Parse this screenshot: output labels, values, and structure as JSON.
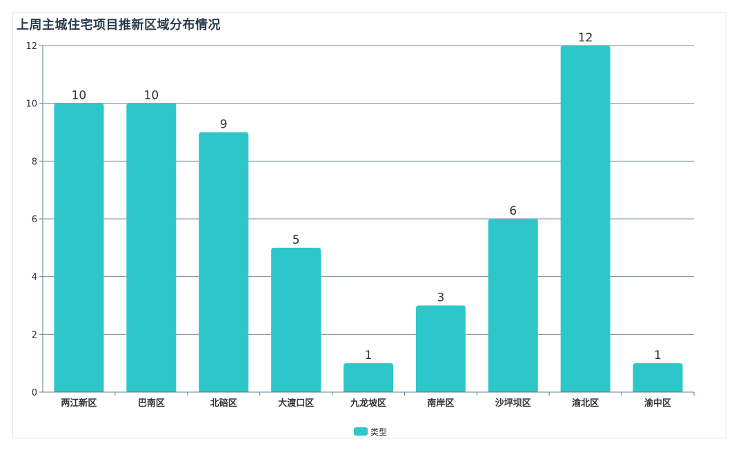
{
  "chart_data": {
    "type": "bar",
    "title": "上周主城住宅项目推新区域分布情况",
    "categories": [
      "两江新区",
      "巴南区",
      "北碚区",
      "大渡口区",
      "九龙坡区",
      "南岸区",
      "沙坪坝区",
      "渝北区",
      "渝中区"
    ],
    "series": [
      {
        "name": "类型",
        "values": [
          10,
          10,
          9,
          5,
          1,
          3,
          6,
          12,
          1
        ]
      }
    ],
    "ylim": [
      0,
      12
    ],
    "yticks": [
      0,
      2,
      4,
      6,
      8,
      10,
      12
    ],
    "grid": true,
    "legend_position": "bottom-center",
    "colors": {
      "bar": "#2ec7c9",
      "grid": "#6b8fa0",
      "axis": "#5a7f8f"
    }
  }
}
